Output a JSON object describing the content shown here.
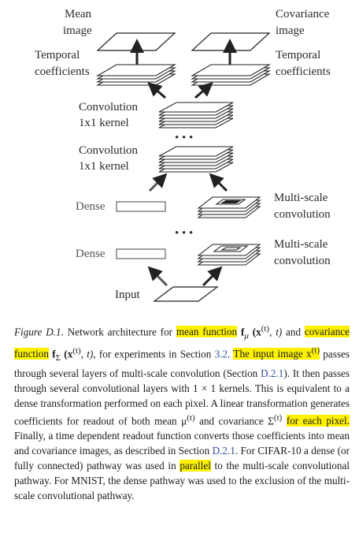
{
  "figure": {
    "labels": {
      "mean_image": [
        "Mean",
        "image"
      ],
      "covariance_image": [
        "Covariance",
        "image"
      ],
      "temporal_left": [
        "Temporal",
        "coefficients"
      ],
      "temporal_right": [
        "Temporal",
        "coefficients"
      ],
      "conv1": [
        "Convolution",
        "1x1 kernel"
      ],
      "conv2": [
        "Convolution",
        "1x1 kernel"
      ],
      "multiscale1": [
        "Multi-scale",
        "convolution"
      ],
      "multiscale2": [
        "Multi-scale",
        "convolution"
      ],
      "dense1": "Dense",
      "dense2": "Dense",
      "input": "Input",
      "ellipsis": "• • •"
    }
  },
  "caption": {
    "figure_label": "Figure D.1.",
    "t1": " Network architecture for ",
    "hl_mean": "mean function",
    "t2": " f",
    "sub_mu": "μ",
    "t3": " (x",
    "sup_t1": "(t)",
    "t4": ", t)",
    "t5": " and ",
    "hl_cov": "covariance function",
    "t6": " f",
    "sub_sigma": "Σ",
    "t7": " (x",
    "sup_t2": "(t)",
    "t8": ", t)",
    "t9": ", for experiments in Section ",
    "ref_32": "3.2",
    "t10": ". ",
    "hl_input": "The input image x",
    "sup_t3": "(t)",
    "t11": " passes through several layers of multi-scale convolution (Section ",
    "ref_d21a": "D.2.1",
    "t12": "). It then passes through several convolutional layers with 1 × 1 kernels. This is equivalent to a dense transformation performed on each pixel. A linear transformation generates coefficients for readout of both mean μ",
    "sup_t4": "(t)",
    "t13": " and covariance Σ",
    "sup_t5": "(t)",
    "t14": " ",
    "hl_each": "for each pixel.",
    "t15": " Finally, a time dependent readout function converts those coefficients into mean and covariance images, as described in Section ",
    "ref_d21b": "D.2.1",
    "t16": ". For CIFAR-10 a dense (or fully connected) pathway was used in ",
    "hl_parallel": "parallel",
    "t17": " to the multi-scale convolutional pathway. For MNIST, the dense pathway was used to the exclusion of the multi-scale convolutional pathway."
  }
}
